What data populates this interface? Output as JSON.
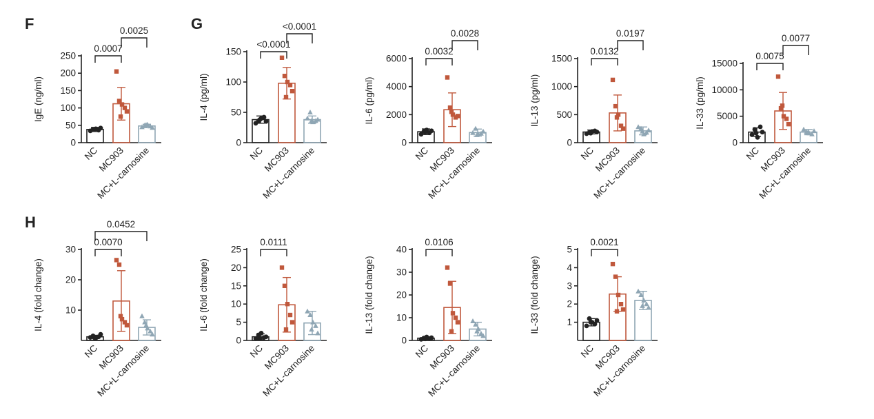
{
  "panels": [
    {
      "letter": "F"
    },
    {
      "letter": "G"
    },
    {
      "letter": "H"
    }
  ],
  "colors": {
    "NC": "#222222",
    "MC903": "#c0583c",
    "MC+L-carnosine": "#8fa6b4"
  },
  "chart_data": [
    {
      "type": "bar",
      "panel": "F",
      "ylabel": "IgE (ng/ml)",
      "ylim": [
        0,
        250
      ],
      "yticks": [
        0,
        50,
        100,
        150,
        200,
        250
      ],
      "categories": [
        "NC",
        "MC903",
        "MC+L-carnosine"
      ],
      "series": [
        {
          "name": "NC",
          "mean": 38,
          "sd": 6,
          "points": [
            34,
            38,
            40,
            36,
            42,
            38
          ]
        },
        {
          "name": "MC903",
          "mean": 112,
          "sd": 47,
          "points": [
            205,
            120,
            110,
            100,
            90,
            75
          ]
        },
        {
          "name": "MC+L-carnosine",
          "mean": 48,
          "sd": 5,
          "points": [
            45,
            50,
            52,
            47,
            43,
            51
          ]
        }
      ],
      "comparisons": [
        {
          "from": 0,
          "to": 1,
          "p": "0.0007"
        },
        {
          "from": 1,
          "to": 2,
          "p": "0.0025"
        }
      ]
    },
    {
      "type": "bar",
      "panel": "G",
      "ylabel": "IL-4 (pg/ml)",
      "ylim": [
        0,
        150
      ],
      "yticks": [
        0,
        50,
        100,
        150
      ],
      "categories": [
        "NC",
        "MC903",
        "MC+L-carnosine"
      ],
      "series": [
        {
          "name": "NC",
          "mean": 38,
          "sd": 6,
          "points": [
            32,
            36,
            40,
            42,
            35,
            38
          ]
        },
        {
          "name": "MC903",
          "mean": 98,
          "sd": 26,
          "points": [
            140,
            110,
            100,
            95,
            85,
            75
          ]
        },
        {
          "name": "MC+L-carnosine",
          "mean": 38,
          "sd": 6,
          "points": [
            40,
            50,
            34,
            36,
            38,
            36
          ]
        }
      ],
      "comparisons": [
        {
          "from": 0,
          "to": 1,
          "p": "<0.0001"
        },
        {
          "from": 1,
          "to": 2,
          "p": "<0.0001"
        }
      ]
    },
    {
      "type": "bar",
      "panel": "G",
      "ylabel": "IL-6 (pg/ml)",
      "ylim": [
        0,
        6000
      ],
      "yticks": [
        0,
        2000,
        4000,
        6000
      ],
      "categories": [
        "NC",
        "MC903",
        "MC+L-carnosine"
      ],
      "series": [
        {
          "name": "NC",
          "mean": 780,
          "sd": 200,
          "points": [
            600,
            800,
            900,
            700,
            850,
            750
          ]
        },
        {
          "name": "MC903",
          "mean": 2350,
          "sd": 1200,
          "points": [
            4650,
            2500,
            2000,
            1800,
            1900,
            2200
          ]
        },
        {
          "name": "MC+L-carnosine",
          "mean": 720,
          "sd": 250,
          "points": [
            700,
            1000,
            600,
            650,
            800,
            550
          ]
        }
      ],
      "comparisons": [
        {
          "from": 0,
          "to": 1,
          "p": "0.0032"
        },
        {
          "from": 1,
          "to": 2,
          "p": "0.0028"
        }
      ]
    },
    {
      "type": "bar",
      "panel": "G",
      "ylabel": "IL-13 (pg/ml)",
      "ylim": [
        0,
        1500
      ],
      "yticks": [
        0,
        500,
        1000,
        1500
      ],
      "categories": [
        "NC",
        "MC903",
        "MC+L-carnosine"
      ],
      "series": [
        {
          "name": "NC",
          "mean": 190,
          "sd": 35,
          "points": [
            160,
            180,
            200,
            210,
            190,
            170
          ]
        },
        {
          "name": "MC903",
          "mean": 530,
          "sd": 320,
          "points": [
            1120,
            650,
            500,
            300,
            250,
            450
          ]
        },
        {
          "name": "MC+L-carnosine",
          "mean": 210,
          "sd": 70,
          "points": [
            280,
            250,
            150,
            180,
            220,
            200
          ]
        }
      ],
      "comparisons": [
        {
          "from": 0,
          "to": 1,
          "p": "0.0132"
        },
        {
          "from": 1,
          "to": 2,
          "p": "0.0197"
        }
      ]
    },
    {
      "type": "bar",
      "panel": "G",
      "ylabel": "IL-33 (pg/ml)",
      "ylim": [
        0,
        15000
      ],
      "yticks": [
        0,
        5000,
        10000,
        15000
      ],
      "categories": [
        "NC",
        "MC903",
        "MC+L-carnosine"
      ],
      "series": [
        {
          "name": "NC",
          "mean": 2000,
          "sd": 800,
          "points": [
            1500,
            2500,
            1000,
            3000,
            2000,
            1800
          ]
        },
        {
          "name": "MC903",
          "mean": 6000,
          "sd": 3500,
          "points": [
            12500,
            6500,
            5000,
            4500,
            3500,
            7000
          ]
        },
        {
          "name": "MC+L-carnosine",
          "mean": 2000,
          "sd": 500,
          "points": [
            2500,
            2000,
            1800,
            1600,
            2200,
            1900
          ]
        }
      ],
      "comparisons": [
        {
          "from": 0,
          "to": 1,
          "p": "0.0075"
        },
        {
          "from": 1,
          "to": 2,
          "p": "0.0077"
        }
      ]
    },
    {
      "type": "bar",
      "panel": "H",
      "ylabel": "IL-4 (fold change)",
      "ylim": [
        0,
        30
      ],
      "yticks": [
        10,
        20,
        30
      ],
      "categories": [
        "NC",
        "MC903",
        "MC+L-carnosine"
      ],
      "series": [
        {
          "name": "NC",
          "mean": 1.2,
          "sd": 0.5,
          "points": [
            1.0,
            1.5,
            0.8,
            1.2,
            2.0,
            0.9
          ]
        },
        {
          "name": "MC903",
          "mean": 13,
          "sd": 10,
          "points": [
            26.5,
            25,
            7,
            6,
            5,
            8
          ]
        },
        {
          "name": "MC+L-carnosine",
          "mean": 4.3,
          "sd": 2.5,
          "points": [
            8,
            6,
            4,
            3,
            2,
            5
          ]
        }
      ],
      "comparisons": [
        {
          "from": 0,
          "to": 1,
          "p": "0.0070"
        },
        {
          "from": 0,
          "to": 2,
          "p": "0.0452"
        }
      ]
    },
    {
      "type": "bar",
      "panel": "H",
      "ylabel": "IL-6 (fold change)",
      "ylim": [
        0,
        25
      ],
      "yticks": [
        0,
        5,
        10,
        15,
        20,
        25
      ],
      "categories": [
        "NC",
        "MC903",
        "MC+L-carnosine"
      ],
      "series": [
        {
          "name": "NC",
          "mean": 1.0,
          "sd": 0.8,
          "points": [
            0.5,
            1.5,
            2.0,
            0.8,
            1.0,
            0.6
          ]
        },
        {
          "name": "MC903",
          "mean": 9.8,
          "sd": 7.5,
          "points": [
            20,
            15,
            10,
            7,
            5,
            3
          ]
        },
        {
          "name": "MC+L-carnosine",
          "mean": 4.8,
          "sd": 3.2,
          "points": [
            8,
            7,
            5,
            4,
            2,
            3
          ]
        }
      ],
      "comparisons": [
        {
          "from": 0,
          "to": 1,
          "p": "0.0111"
        }
      ]
    },
    {
      "type": "bar",
      "panel": "H",
      "ylabel": "IL-13 (fold change)",
      "ylim": [
        0,
        40
      ],
      "yticks": [
        0,
        10,
        20,
        30,
        40
      ],
      "categories": [
        "NC",
        "MC903",
        "MC+L-carnosine"
      ],
      "series": [
        {
          "name": "NC",
          "mean": 1.0,
          "sd": 0.5,
          "points": [
            0.5,
            1.0,
            1.5,
            0.8,
            1.2,
            0.7
          ]
        },
        {
          "name": "MC903",
          "mean": 14.5,
          "sd": 11.5,
          "points": [
            32,
            25,
            12,
            10,
            8,
            4
          ]
        },
        {
          "name": "MC+L-carnosine",
          "mean": 5.0,
          "sd": 3.0,
          "points": [
            8.5,
            7,
            5,
            3,
            2,
            4
          ]
        }
      ],
      "comparisons": [
        {
          "from": 0,
          "to": 1,
          "p": "0.0106"
        }
      ]
    },
    {
      "type": "bar",
      "panel": "H",
      "ylabel": "IL-33 (fold change)",
      "ylim": [
        0,
        5
      ],
      "yticks": [
        1,
        2,
        3,
        4,
        5
      ],
      "categories": [
        "NC",
        "MC903",
        "MC+L-carnosine"
      ],
      "series": [
        {
          "name": "NC",
          "mean": 1.0,
          "sd": 0.2,
          "points": [
            0.8,
            1.2,
            1.0,
            0.9,
            1.1,
            1.0
          ]
        },
        {
          "name": "MC903",
          "mean": 2.55,
          "sd": 0.95,
          "points": [
            4.2,
            3.5,
            2.5,
            2.0,
            1.7,
            1.6
          ]
        },
        {
          "name": "MC+L-carnosine",
          "mean": 2.2,
          "sd": 0.5,
          "points": [
            2.7,
            2.5,
            2.2,
            2.0,
            1.8,
            1.9
          ]
        }
      ],
      "comparisons": [
        {
          "from": 0,
          "to": 1,
          "p": "0.0021"
        }
      ]
    }
  ]
}
